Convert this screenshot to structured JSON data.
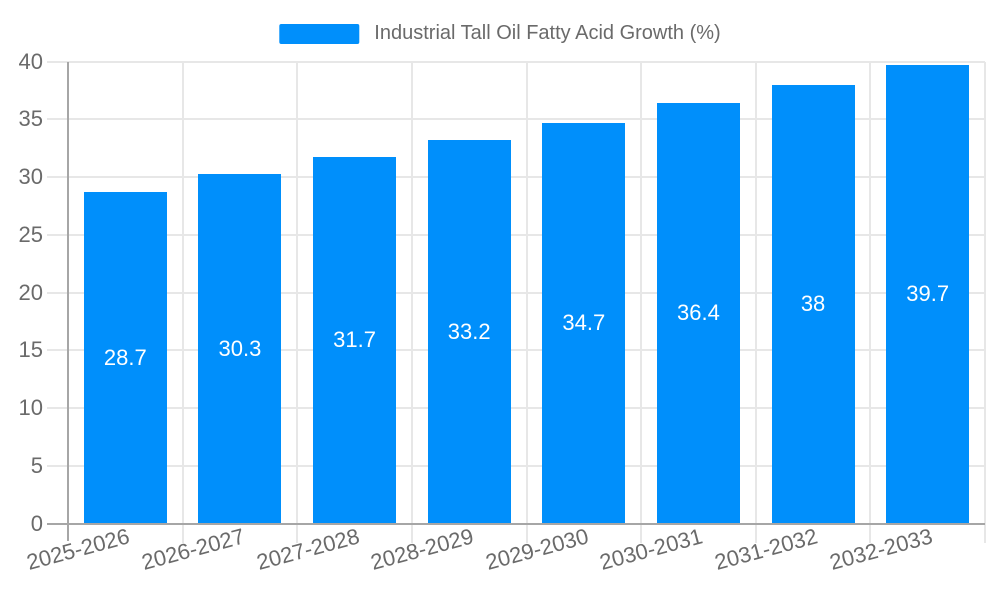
{
  "legend": {
    "label": "Industrial Tall Oil Fatty Acid Growth (%)"
  },
  "colors": {
    "bar": "#008FFB",
    "grid": "#e7e7e7",
    "axis": "#a6a6a6",
    "axis_label": "#6a6a6a",
    "value_label": "#ffffff",
    "background": "#ffffff"
  },
  "chart_data": {
    "type": "bar",
    "title": "Industrial Tall Oil Fatty Acid Growth (%)",
    "categories": [
      "2025-2026",
      "2026-2027",
      "2027-2028",
      "2028-2029",
      "2029-2030",
      "2030-2031",
      "2031-2032",
      "2032-2033"
    ],
    "values": [
      28.7,
      30.3,
      31.7,
      33.2,
      34.7,
      36.4,
      38,
      39.7
    ],
    "xlabel": "",
    "ylabel": "",
    "ylim": [
      0,
      40
    ],
    "ytick_step": 5,
    "ytick_labels": [
      "0",
      "5",
      "10",
      "15",
      "20",
      "25",
      "30",
      "35",
      "40"
    ],
    "grid": true,
    "legend_position": "top"
  }
}
